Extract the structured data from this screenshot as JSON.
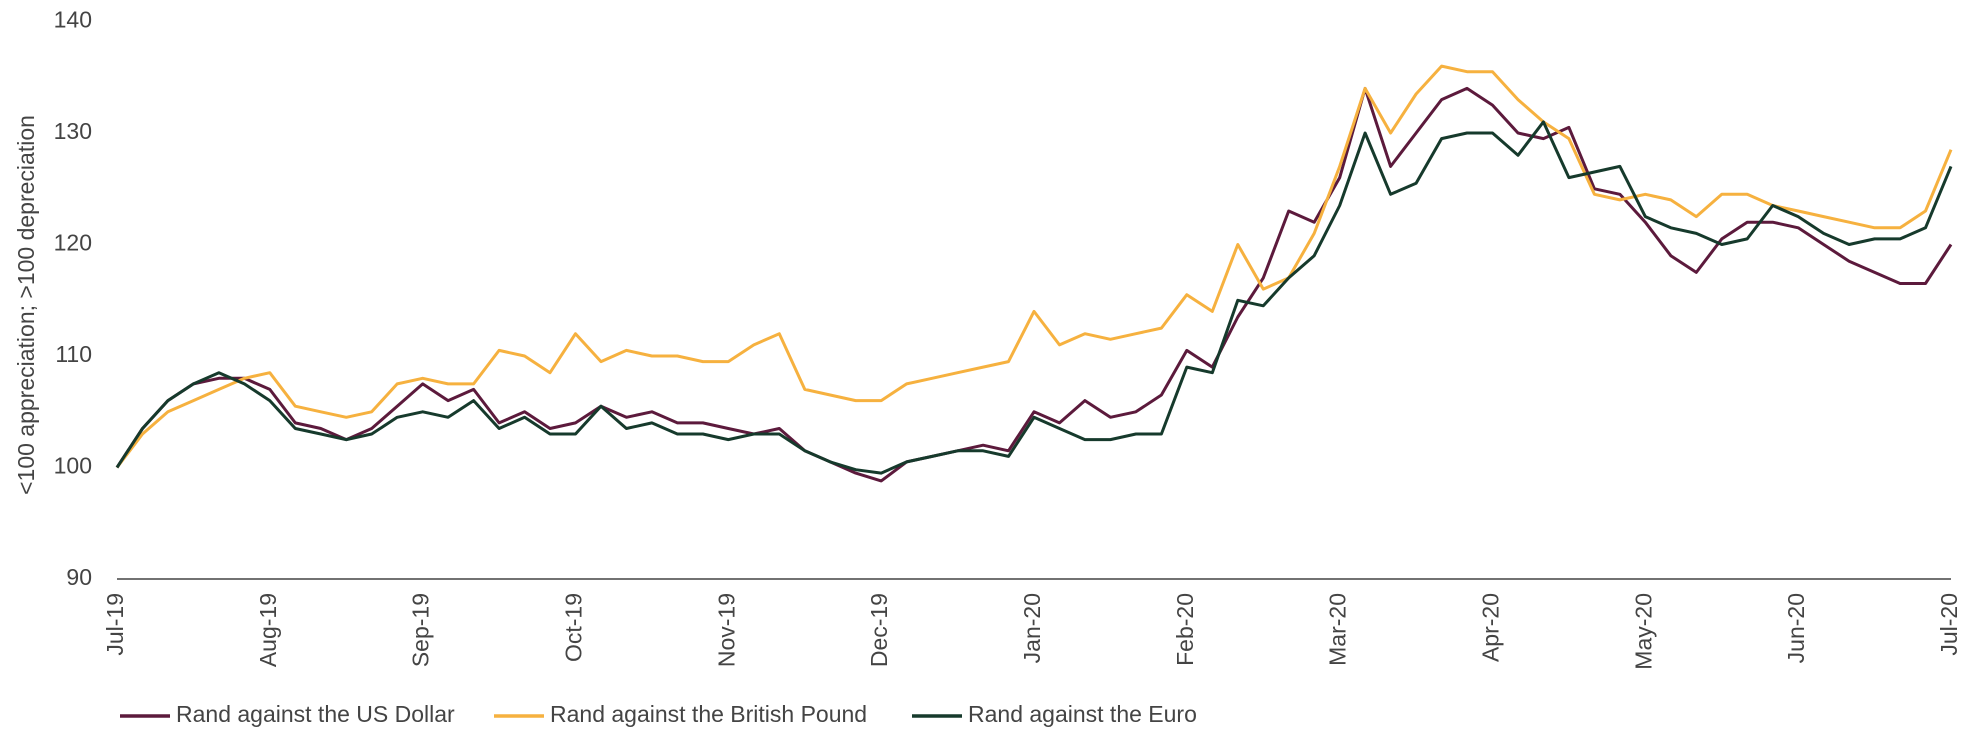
{
  "chart_data": {
    "type": "line",
    "ylabel": "<100 appreciation; >100 depreciation",
    "categories": [
      "Jul-19",
      null,
      null,
      null,
      null,
      null,
      "Aug-19",
      null,
      null,
      null,
      null,
      null,
      "Sep-19",
      null,
      null,
      null,
      null,
      null,
      "Oct-19",
      null,
      null,
      null,
      null,
      null,
      "Nov-19",
      null,
      null,
      null,
      null,
      null,
      "Dec-19",
      null,
      null,
      null,
      null,
      null,
      "Jan-20",
      null,
      null,
      null,
      null,
      null,
      "Feb-20",
      null,
      null,
      null,
      null,
      null,
      "Mar-20",
      null,
      null,
      null,
      null,
      null,
      "Apr-20",
      null,
      null,
      null,
      null,
      null,
      "May-20",
      null,
      null,
      null,
      null,
      null,
      "Jun-20",
      null,
      null,
      null,
      null,
      null,
      "Jul-20"
    ],
    "series": [
      {
        "name": "Rand against the US Dollar",
        "color": "#5c1a3c",
        "values": [
          100,
          103.5,
          106,
          107.5,
          108,
          108,
          107,
          104,
          103.5,
          102.5,
          103.5,
          105.5,
          107.5,
          106,
          107,
          104,
          105,
          103.5,
          104,
          105.5,
          104.5,
          105,
          104,
          104,
          103.5,
          103,
          103.5,
          101.5,
          100.5,
          99.5,
          98.8,
          100.5,
          101,
          101.5,
          102,
          101.5,
          105,
          104,
          106,
          104.5,
          105,
          106.5,
          110.5,
          109,
          113.5,
          117,
          123,
          122,
          126,
          134,
          127,
          130,
          133,
          134,
          132.5,
          130,
          129.5,
          130.5,
          125,
          124.5,
          122,
          119,
          117.5,
          120.5,
          122,
          122,
          121.5,
          120,
          118.5,
          117.5,
          116.5,
          116.5,
          120
        ]
      },
      {
        "name": "Rand against the British Pound",
        "color": "#f6b13f",
        "values": [
          100,
          103,
          105,
          106,
          107,
          108,
          108.5,
          105.5,
          105,
          104.5,
          105,
          107.5,
          108,
          107.5,
          107.5,
          110.5,
          110,
          108.5,
          112,
          109.5,
          110.5,
          110,
          110,
          109.5,
          109.5,
          111,
          112,
          107,
          106.5,
          106,
          106,
          107.5,
          108,
          108.5,
          109,
          109.5,
          114,
          111,
          112,
          111.5,
          112,
          112.5,
          115.5,
          114,
          120,
          116,
          117,
          121,
          127,
          134,
          130,
          133.5,
          136,
          135.5,
          135.5,
          133,
          131,
          129.5,
          124.5,
          124,
          124.5,
          124,
          122.5,
          124.5,
          124.5,
          123.5,
          123,
          122.5,
          122,
          121.5,
          121.5,
          123,
          128.5
        ]
      },
      {
        "name": "Rand against the Euro",
        "color": "#163a2c",
        "values": [
          100,
          103.5,
          106,
          107.5,
          108.5,
          107.5,
          106,
          103.5,
          103,
          102.5,
          103,
          104.5,
          105,
          104.5,
          106,
          103.5,
          104.5,
          103,
          103,
          105.5,
          103.5,
          104,
          103,
          103,
          102.5,
          103,
          103,
          101.5,
          100.5,
          99.8,
          99.5,
          100.5,
          101,
          101.5,
          101.5,
          101,
          104.5,
          103.5,
          102.5,
          102.5,
          103,
          103,
          109,
          108.5,
          115,
          114.5,
          117,
          119,
          123.5,
          130,
          124.5,
          125.5,
          129.5,
          130,
          130,
          128,
          131,
          126,
          126.5,
          127,
          122.5,
          121.5,
          121,
          120,
          120.5,
          123.5,
          122.5,
          121,
          120,
          120.5,
          120.5,
          121.5,
          127
        ]
      }
    ],
    "ylim": [
      90,
      140
    ],
    "yticks": [
      90,
      100,
      110,
      120,
      130,
      140
    ],
    "grid": false
  }
}
